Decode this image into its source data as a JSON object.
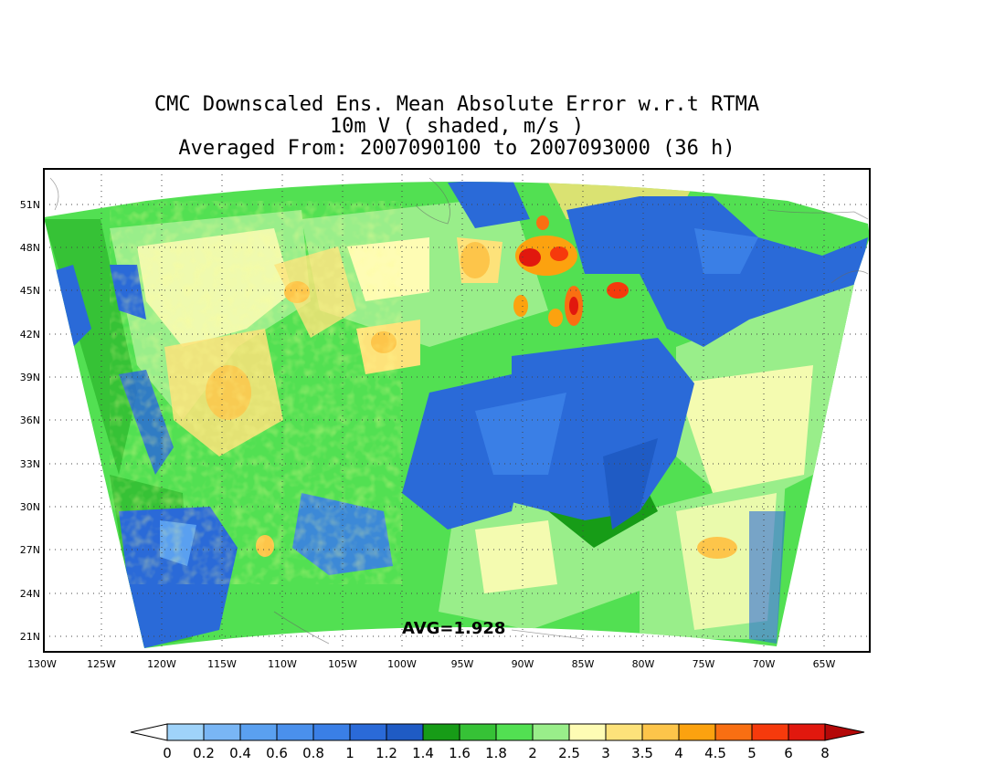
{
  "title": {
    "line1": "CMC Downscaled Ens. Mean Absolute Error w.r.t RTMA",
    "line2": "10m V ( shaded, m/s )",
    "line3": "Averaged From: 2007090100 to 2007093000 (36 h)"
  },
  "map": {
    "lat_labels": [
      "51N",
      "48N",
      "45N",
      "42N",
      "39N",
      "36N",
      "33N",
      "30N",
      "27N",
      "24N",
      "21N"
    ],
    "lon_labels": [
      "130W",
      "125W",
      "120W",
      "115W",
      "110W",
      "105W",
      "100W",
      "95W",
      "90W",
      "85W",
      "80W",
      "75W",
      "70W",
      "65W"
    ],
    "avg_label": "AVG=1.928",
    "grid": "dotted"
  },
  "colorbar": {
    "labels": [
      "0",
      "0.2",
      "0.4",
      "0.6",
      "0.8",
      "1",
      "1.2",
      "1.4",
      "1.6",
      "1.8",
      "2",
      "2.5",
      "3",
      "3.5",
      "4",
      "4.5",
      "5",
      "6",
      "8"
    ],
    "colors": [
      "#9fd3fa",
      "#79b6f5",
      "#5aa0f0",
      "#4a90ec",
      "#3a7fe6",
      "#2a6ad8",
      "#1f5bc4",
      "#179c17",
      "#36c236",
      "#52e052",
      "#99ee8a",
      "#fefcb4",
      "#fde27a",
      "#fdc54a",
      "#fca20f",
      "#f96f12",
      "#f63a0c",
      "#e1180e",
      "#b40808"
    ]
  }
}
